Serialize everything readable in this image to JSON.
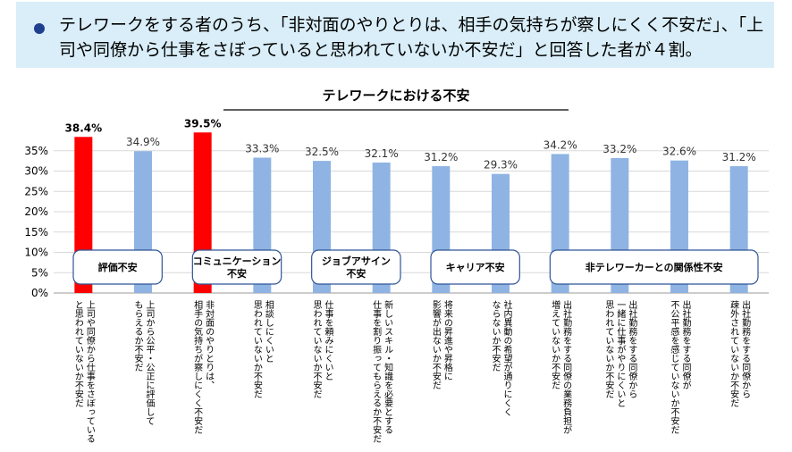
{
  "header": {
    "text": "テレワークをする者のうち、「非対面のやりとりは、相手の気持ちが察しにくく不安だ」、「上司や同僚から仕事をさぼっていると思われていないか不安だ」と回答した者が４割。"
  },
  "colors": {
    "header_bg": "#d9eef8",
    "bullet": "#1f3f8f",
    "bar": "#8fb4e3",
    "bar_highlight": "#ff0000",
    "group_border": "#2f5597"
  },
  "chart_data": {
    "type": "bar",
    "title": "テレワークにおける不安",
    "categories": [
      [
        "上司や同僚から仕事をさぼっている",
        "と思われていないか不安だ"
      ],
      [
        "上司から公平・公正に評価して",
        "もらえるか不安だ"
      ],
      [
        "非対面のやりとりは、",
        "相手の気持ちが察しにくく不安だ"
      ],
      [
        "相談しにくいと",
        "思われていないか不安だ"
      ],
      [
        "仕事を頼みにくいと",
        "思われていないか不安だ"
      ],
      [
        "新しいスキル・知識を必要とする",
        "仕事を割り振ってもらえるか不安だ"
      ],
      [
        "将来の昇進や昇格に",
        "影響が出ないか不安だ"
      ],
      [
        "社内異動の希望が通りにくく",
        "ならないか不安だ"
      ],
      [
        "出社勤務をする同僚の業務負担が",
        "増えていないか不安だ"
      ],
      [
        "出社勤務をする同僚から",
        "一緒に仕事がやりにくいと",
        "思われていないか不安だ"
      ],
      [
        "出社勤務をする同僚が",
        "不公平感を感じていないか不安だ"
      ],
      [
        "出社勤務をする同僚から",
        "疎外されていないか不安だ"
      ]
    ],
    "values": [
      38.4,
      34.9,
      39.5,
      33.3,
      32.5,
      32.1,
      31.2,
      29.3,
      34.2,
      33.2,
      32.6,
      31.2
    ],
    "value_labels": [
      "38.4%",
      "34.9%",
      "39.5%",
      "33.3%",
      "32.5%",
      "32.1%",
      "31.2%",
      "29.3%",
      "34.2%",
      "33.2%",
      "32.6%",
      "31.2%"
    ],
    "highlighted": [
      0,
      2
    ],
    "y_ticks": [
      "0%",
      "5%",
      "10%",
      "15%",
      "20%",
      "25%",
      "30%",
      "35%"
    ],
    "ylim": [
      0,
      40
    ],
    "groups": [
      {
        "label": [
          "評価不安"
        ],
        "from": 0,
        "to": 1
      },
      {
        "label": [
          "コミュニケーション",
          "不安"
        ],
        "from": 2,
        "to": 3
      },
      {
        "label": [
          "ジョブアサイン",
          "不安"
        ],
        "from": 4,
        "to": 5
      },
      {
        "label": [
          "キャリア不安"
        ],
        "from": 6,
        "to": 7
      },
      {
        "label": [
          "非テレワーカーとの関係性不安"
        ],
        "from": 8,
        "to": 11
      }
    ],
    "grid": true,
    "legend": "none"
  }
}
